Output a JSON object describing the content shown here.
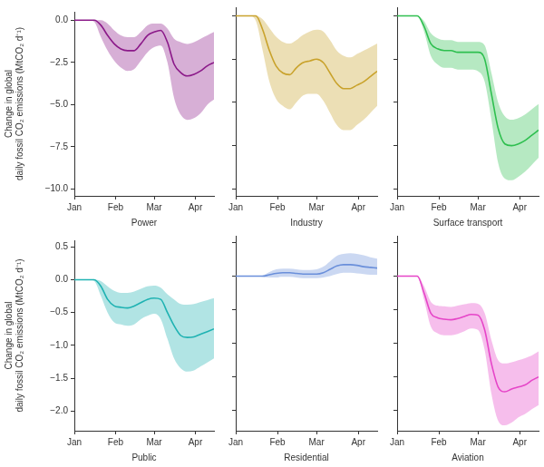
{
  "chart_data": [
    {
      "type": "line",
      "x_label": "Power",
      "y_label": [
        "Change in global",
        "daily fossil CO₂ emissions (MtCO₂ d⁻¹)"
      ],
      "x": [
        0,
        5,
        10,
        15,
        20,
        25,
        30,
        35,
        40,
        45,
        50,
        55,
        60,
        65,
        70,
        75,
        80,
        85,
        90,
        95,
        100,
        105
      ],
      "values": [
        0,
        0,
        0,
        0,
        -0.3,
        -0.9,
        -1.4,
        -1.7,
        -1.8,
        -1.8,
        -1.4,
        -0.9,
        -0.7,
        -0.6,
        -1.3,
        -2.6,
        -3.1,
        -3.3,
        -3.2,
        -3.0,
        -2.7,
        -2.5
      ],
      "lower": [
        0,
        0,
        0,
        -0.1,
        -1.0,
        -1.8,
        -2.4,
        -2.8,
        -3.0,
        -2.9,
        -2.4,
        -1.9,
        -1.6,
        -1.5,
        -2.5,
        -4.6,
        -5.6,
        -5.9,
        -5.8,
        -5.5,
        -5.0,
        -4.7
      ],
      "upper": [
        0,
        0,
        0,
        0,
        0,
        -0.2,
        -0.6,
        -0.9,
        -1.0,
        -1.0,
        -0.7,
        -0.3,
        -0.2,
        -0.2,
        -0.5,
        -1.1,
        -1.3,
        -1.4,
        -1.3,
        -1.1,
        -0.9,
        -0.7
      ],
      "color": "#8b1a89",
      "xlim": [
        0,
        105
      ],
      "xticks": [
        {
          "value": 0,
          "label": "Jan"
        },
        {
          "value": 31,
          "label": "Feb"
        },
        {
          "value": 60,
          "label": "Mar"
        },
        {
          "value": 91,
          "label": "Apr"
        }
      ],
      "ylim": [
        -10.4,
        0.5
      ],
      "yticks": [
        {
          "value": 0,
          "label": "0.0"
        },
        {
          "value": -2.5,
          "label": "−2.5"
        },
        {
          "value": -5,
          "label": "−5.0"
        },
        {
          "value": -7.5,
          "label": "−7.5"
        },
        {
          "value": -10,
          "label": "−10.0"
        }
      ],
      "grid": false
    },
    {
      "type": "line",
      "x_label": "Industry",
      "x": [
        0,
        5,
        10,
        15,
        20,
        25,
        30,
        35,
        40,
        45,
        50,
        55,
        60,
        65,
        70,
        75,
        80,
        85,
        90,
        95,
        100,
        105
      ],
      "values": [
        0,
        0,
        0,
        0,
        -0.8,
        -2.0,
        -2.9,
        -3.3,
        -3.4,
        -3.0,
        -2.7,
        -2.6,
        -2.5,
        -2.7,
        -3.3,
        -3.9,
        -4.2,
        -4.2,
        -4.0,
        -3.8,
        -3.5,
        -3.2
      ],
      "lower": [
        0,
        0,
        0,
        -0.3,
        -2.0,
        -3.8,
        -4.8,
        -5.2,
        -5.4,
        -5.0,
        -4.6,
        -4.5,
        -4.5,
        -4.9,
        -5.6,
        -6.3,
        -6.6,
        -6.6,
        -6.3,
        -6.0,
        -5.6,
        -5.2
      ],
      "upper": [
        0,
        0,
        0,
        0,
        -0.2,
        -0.7,
        -1.2,
        -1.5,
        -1.6,
        -1.4,
        -1.1,
        -0.9,
        -0.8,
        -0.9,
        -1.4,
        -2.0,
        -2.3,
        -2.4,
        -2.2,
        -2.0,
        -1.8,
        -1.6
      ],
      "color": "#c9a22c",
      "xlim": [
        0,
        105
      ],
      "xticks": [
        {
          "value": 0,
          "label": "Jan"
        },
        {
          "value": 31,
          "label": "Feb"
        },
        {
          "value": 60,
          "label": "Mar"
        },
        {
          "value": 91,
          "label": "Apr"
        }
      ],
      "ylim": [
        -10.4,
        0.5
      ],
      "yticks": [
        {
          "value": 0,
          "label": "0.0"
        },
        {
          "value": -2.5,
          "label": "−2.5"
        },
        {
          "value": -5,
          "label": "−5.0"
        },
        {
          "value": -7.5,
          "label": "−7.5"
        },
        {
          "value": -10,
          "label": "−10.0"
        }
      ],
      "grid": false,
      "tick_labels": "x"
    },
    {
      "type": "line",
      "x_label": "Surface transport",
      "x": [
        0,
        5,
        10,
        15,
        20,
        25,
        30,
        35,
        40,
        45,
        50,
        55,
        60,
        65,
        70,
        75,
        80,
        85,
        90,
        95,
        100,
        105
      ],
      "values": [
        0,
        0,
        0,
        0,
        -0.6,
        -1.6,
        -1.9,
        -2.0,
        -2.0,
        -2.1,
        -2.1,
        -2.1,
        -2.1,
        -2.5,
        -4.5,
        -6.5,
        -7.4,
        -7.5,
        -7.4,
        -7.2,
        -6.9,
        -6.6
      ],
      "lower": [
        0,
        0,
        0,
        0,
        -0.9,
        -2.3,
        -2.8,
        -3.0,
        -3.0,
        -3.1,
        -3.1,
        -3.1,
        -3.2,
        -3.8,
        -6.0,
        -8.5,
        -9.4,
        -9.5,
        -9.3,
        -9.0,
        -8.6,
        -8.2
      ],
      "upper": [
        0,
        0,
        0,
        0,
        -0.3,
        -1.0,
        -1.3,
        -1.4,
        -1.4,
        -1.5,
        -1.5,
        -1.5,
        -1.5,
        -1.7,
        -3.3,
        -5.0,
        -5.8,
        -6.0,
        -5.9,
        -5.7,
        -5.4,
        -5.1
      ],
      "color": "#2fbf4f",
      "xlim": [
        0,
        105
      ],
      "xticks": [
        {
          "value": 0,
          "label": "Jan"
        },
        {
          "value": 31,
          "label": "Feb"
        },
        {
          "value": 60,
          "label": "Mar"
        },
        {
          "value": 91,
          "label": "Apr"
        }
      ],
      "ylim": [
        -10.4,
        0.5
      ],
      "yticks": [
        {
          "value": 0,
          "label": "0.0"
        },
        {
          "value": -2.5,
          "label": "−2.5"
        },
        {
          "value": -5,
          "label": "−5.0"
        },
        {
          "value": -7.5,
          "label": "−7.5"
        },
        {
          "value": -10,
          "label": "−10.0"
        }
      ],
      "grid": false,
      "tick_labels": "x"
    },
    {
      "type": "line",
      "x_label": "Public",
      "y_label": [
        "Change in global",
        "daily fossil CO₂ emissions (MtCO₂ d⁻¹)"
      ],
      "x": [
        0,
        5,
        10,
        15,
        20,
        25,
        30,
        35,
        40,
        45,
        50,
        55,
        60,
        65,
        70,
        75,
        80,
        85,
        90,
        95,
        100,
        105
      ],
      "values": [
        0,
        0,
        0,
        0,
        -0.1,
        -0.3,
        -0.4,
        -0.42,
        -0.43,
        -0.4,
        -0.35,
        -0.3,
        -0.28,
        -0.3,
        -0.5,
        -0.7,
        -0.85,
        -0.88,
        -0.87,
        -0.83,
        -0.79,
        -0.75
      ],
      "lower": [
        0,
        0,
        0,
        -0.02,
        -0.25,
        -0.5,
        -0.65,
        -0.68,
        -0.7,
        -0.68,
        -0.6,
        -0.55,
        -0.52,
        -0.6,
        -0.9,
        -1.2,
        -1.35,
        -1.4,
        -1.38,
        -1.32,
        -1.26,
        -1.2
      ],
      "upper": [
        0,
        0,
        0,
        0,
        -0.02,
        -0.1,
        -0.17,
        -0.2,
        -0.2,
        -0.18,
        -0.14,
        -0.1,
        -0.09,
        -0.12,
        -0.22,
        -0.3,
        -0.37,
        -0.38,
        -0.37,
        -0.34,
        -0.31,
        -0.28
      ],
      "color": "#1fb3b3",
      "xlim": [
        0,
        105
      ],
      "xticks": [
        {
          "value": 0,
          "label": "Jan"
        },
        {
          "value": 31,
          "label": "Feb"
        },
        {
          "value": 60,
          "label": "Mar"
        },
        {
          "value": 91,
          "label": "Apr"
        }
      ],
      "ylim": [
        -2.3,
        0.6
      ],
      "yticks": [
        0.5,
        {
          "value": 0,
          "label": "0.0"
        },
        {
          "value": -0.5,
          "label": "−0.5"
        },
        {
          "value": -1,
          "label": "−1.0"
        },
        {
          "value": -1.5,
          "label": "−1.5"
        },
        {
          "value": -2,
          "label": "−2.0"
        }
      ],
      "grid": false
    },
    {
      "type": "line",
      "x_label": "Residential",
      "x": [
        0,
        5,
        10,
        15,
        20,
        25,
        30,
        35,
        40,
        45,
        50,
        55,
        60,
        65,
        70,
        75,
        80,
        85,
        90,
        95,
        100,
        105
      ],
      "values": [
        0,
        0,
        0,
        0,
        0,
        0.02,
        0.04,
        0.05,
        0.05,
        0.04,
        0.03,
        0.03,
        0.03,
        0.05,
        0.1,
        0.15,
        0.17,
        0.17,
        0.16,
        0.14,
        0.13,
        0.12
      ],
      "lower": [
        0,
        0,
        0,
        0,
        -0.01,
        -0.02,
        -0.02,
        -0.01,
        -0.01,
        -0.02,
        -0.03,
        -0.03,
        -0.03,
        -0.02,
        0.0,
        0.03,
        0.05,
        0.05,
        0.04,
        0.03,
        0.02,
        0.02
      ],
      "upper": [
        0,
        0,
        0,
        0,
        0.01,
        0.06,
        0.1,
        0.11,
        0.11,
        0.1,
        0.09,
        0.09,
        0.1,
        0.14,
        0.22,
        0.3,
        0.33,
        0.34,
        0.33,
        0.31,
        0.28,
        0.26
      ],
      "color": "#6a8fdb",
      "xlim": [
        0,
        105
      ],
      "xticks": [
        {
          "value": 0,
          "label": "Jan"
        },
        {
          "value": 31,
          "label": "Feb"
        },
        {
          "value": 60,
          "label": "Mar"
        },
        {
          "value": 91,
          "label": "Apr"
        }
      ],
      "ylim": [
        -2.3,
        0.6
      ],
      "yticks": [
        0.5,
        {
          "value": 0,
          "label": "0.0"
        },
        {
          "value": -0.5,
          "label": "−0.5"
        },
        {
          "value": -1,
          "label": "−1.0"
        },
        {
          "value": -1.5,
          "label": "−1.5"
        },
        {
          "value": -2,
          "label": "−2.0"
        }
      ],
      "grid": false,
      "tick_labels": "x"
    },
    {
      "type": "line",
      "x_label": "Aviation",
      "x": [
        0,
        5,
        10,
        15,
        20,
        25,
        30,
        35,
        40,
        45,
        50,
        55,
        60,
        65,
        70,
        75,
        80,
        85,
        90,
        95,
        100,
        105
      ],
      "values": [
        0,
        0,
        0,
        0,
        -0.25,
        -0.55,
        -0.62,
        -0.64,
        -0.65,
        -0.63,
        -0.6,
        -0.57,
        -0.58,
        -0.8,
        -1.3,
        -1.65,
        -1.72,
        -1.68,
        -1.65,
        -1.62,
        -1.55,
        -1.5
      ],
      "lower": [
        0,
        0,
        0,
        0,
        -0.35,
        -0.75,
        -0.85,
        -0.88,
        -0.88,
        -0.86,
        -0.82,
        -0.78,
        -0.8,
        -1.1,
        -1.75,
        -2.15,
        -2.22,
        -2.18,
        -2.1,
        -2.05,
        -1.98,
        -1.92
      ],
      "upper": [
        0,
        0,
        0,
        0,
        -0.15,
        -0.38,
        -0.44,
        -0.45,
        -0.46,
        -0.44,
        -0.42,
        -0.4,
        -0.41,
        -0.55,
        -0.95,
        -1.25,
        -1.3,
        -1.28,
        -1.25,
        -1.22,
        -1.18,
        -1.12
      ],
      "color": "#e645c8",
      "xlim": [
        0,
        105
      ],
      "xticks": [
        {
          "value": 0,
          "label": "Jan"
        },
        {
          "value": 31,
          "label": "Feb"
        },
        {
          "value": 60,
          "label": "Mar"
        },
        {
          "value": 91,
          "label": "Apr"
        }
      ],
      "ylim": [
        -2.3,
        0.6
      ],
      "yticks": [
        0.5,
        {
          "value": 0,
          "label": "0.0"
        },
        {
          "value": -0.5,
          "label": "−0.5"
        },
        {
          "value": -1,
          "label": "−1.0"
        },
        {
          "value": -1.5,
          "label": "−1.5"
        },
        {
          "value": -2,
          "label": "−2.0"
        }
      ],
      "grid": false,
      "tick_labels": "x"
    }
  ]
}
